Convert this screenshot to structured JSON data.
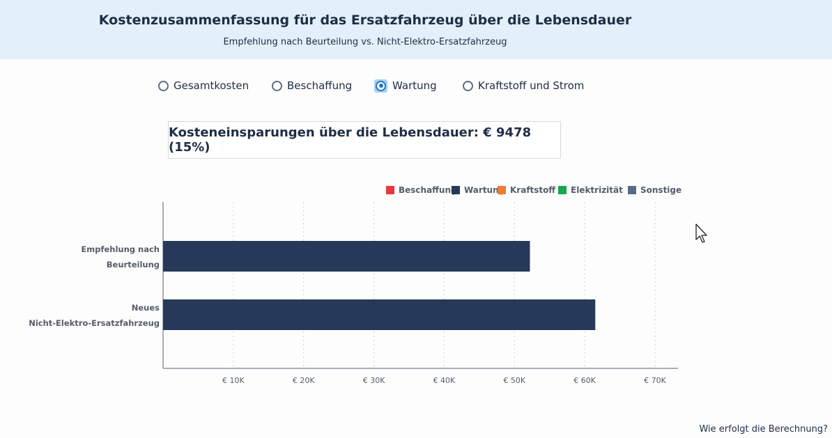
{
  "header": {
    "title": "Kostenzusammenfassung für das Ersatzfahrzeug über die Lebensdauer",
    "subtitle": "Empfehlung nach Beurteilung vs. Nicht-Elektro-Ersatzfahrzeug"
  },
  "radios": {
    "options": [
      "Gesamtkosten",
      "Beschaffung",
      "Wartung",
      "Kraftstoff und Strom"
    ],
    "selected": "Wartung"
  },
  "savings": {
    "text": "Kosteneinsparungen über die Lebensdauer: € 9478 (15%)"
  },
  "legend": [
    {
      "label": "Beschaffung",
      "color": "#e8383d"
    },
    {
      "label": "Wartung",
      "color": "#263959"
    },
    {
      "label": "Kraftstoff",
      "color": "#ee7d31"
    },
    {
      "label": "Elektrizität",
      "color": "#18a84b"
    },
    {
      "label": "Sonstige",
      "color": "#5b6a84"
    }
  ],
  "chart_data": {
    "type": "bar",
    "orientation": "horizontal",
    "stacked": true,
    "categories": [
      [
        "Empfehlung nach",
        "Beurteilung"
      ],
      [
        "Neues",
        "Nicht-Elektro-Ersatzfahrzeug"
      ]
    ],
    "series": [
      {
        "name": "Wartung",
        "color": "#263959",
        "values": [
          52200,
          61500
        ]
      }
    ],
    "xlim": [
      0,
      73000
    ],
    "xticks": [
      10000,
      20000,
      30000,
      40000,
      50000,
      60000,
      70000
    ],
    "xtick_labels": [
      "€ 10K",
      "€ 20K",
      "€ 30K",
      "€ 40K",
      "€ 50K",
      "€ 60K",
      "€ 70K"
    ],
    "grid": "vertical-dotted",
    "legend_position": "top-right"
  },
  "footer": {
    "link": "Wie erfolgt die Berechnung?"
  }
}
